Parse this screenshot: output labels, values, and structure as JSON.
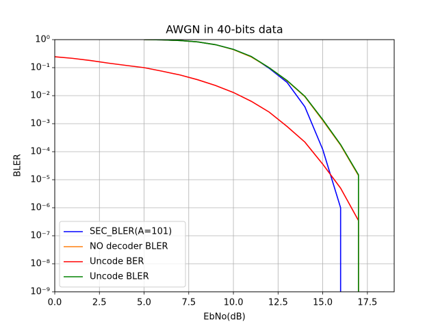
{
  "chart_data": {
    "type": "line",
    "title": "AWGN in 40-bits data",
    "x_label": "EbNo(dB)",
    "y_label": "BLER",
    "xlim": [
      0,
      19
    ],
    "ylim": [
      1e-09,
      1
    ],
    "log_y": true,
    "grid": true,
    "legend": "lower left",
    "xticks": [
      {
        "value": 0,
        "label": "0.0"
      },
      {
        "value": 2.5,
        "label": "2.5"
      },
      {
        "value": 5,
        "label": "5.0"
      },
      {
        "value": 7.5,
        "label": "7.5"
      },
      {
        "value": 10,
        "label": "10.0"
      },
      {
        "value": 12.5,
        "label": "12.5"
      },
      {
        "value": 15,
        "label": "15.0"
      },
      {
        "value": 17.5,
        "label": "17.5"
      }
    ],
    "yticks": [
      {
        "value": 1,
        "label": "10⁰"
      },
      {
        "value": 0.1,
        "label": "10⁻¹"
      },
      {
        "value": 0.01,
        "label": "10⁻²"
      },
      {
        "value": 0.001,
        "label": "10⁻³"
      },
      {
        "value": 0.0001,
        "label": "10⁻⁴"
      },
      {
        "value": 1e-05,
        "label": "10⁻⁵"
      },
      {
        "value": 1e-06,
        "label": "10⁻⁶"
      },
      {
        "value": 1e-07,
        "label": "10⁻⁷"
      },
      {
        "value": 1e-08,
        "label": "10⁻⁸"
      },
      {
        "value": 1e-09,
        "label": "10⁻⁹"
      }
    ],
    "series": [
      {
        "name": "SEC_BLER(A=101)",
        "color": "#0000ff",
        "x": [
          5,
          6,
          7,
          8,
          9,
          10,
          11,
          12,
          13,
          14,
          15,
          16,
          16
        ],
        "values": [
          1,
          0.98,
          0.93,
          0.83,
          0.66,
          0.45,
          0.25,
          0.095,
          0.03,
          0.004,
          0.00012,
          1e-06,
          1e-10
        ]
      },
      {
        "name": "NO decoder BLER",
        "color": "#ff7f0e",
        "x": [
          5,
          6,
          7,
          8,
          9,
          10,
          11,
          12,
          13,
          14,
          15,
          16,
          17,
          17
        ],
        "values": [
          1,
          0.98,
          0.93,
          0.83,
          0.66,
          0.44,
          0.24,
          0.1,
          0.034,
          0.0092,
          0.0013,
          0.00017,
          1.4e-05,
          1e-10
        ]
      },
      {
        "name": "Uncode BER",
        "color": "#ff0000",
        "x": [
          0,
          1,
          2,
          3,
          4,
          5,
          6,
          7,
          8,
          9,
          10,
          11,
          12,
          13,
          14,
          15,
          16,
          17,
          17
        ],
        "values": [
          0.245,
          0.215,
          0.18,
          0.145,
          0.12,
          0.1,
          0.075,
          0.055,
          0.037,
          0.023,
          0.013,
          0.0063,
          0.0026,
          0.0008,
          0.00022,
          3.6e-05,
          5e-06,
          3.5e-07,
          1e-10
        ]
      },
      {
        "name": "Uncode BLER",
        "color": "#008000",
        "x": [
          5,
          6,
          7,
          8,
          9,
          10,
          11,
          12,
          13,
          14,
          15,
          16,
          17,
          17
        ],
        "values": [
          1,
          0.98,
          0.93,
          0.83,
          0.66,
          0.45,
          0.25,
          0.1,
          0.035,
          0.0095,
          0.0014,
          0.00018,
          1.5e-05,
          1e-10
        ]
      }
    ]
  }
}
